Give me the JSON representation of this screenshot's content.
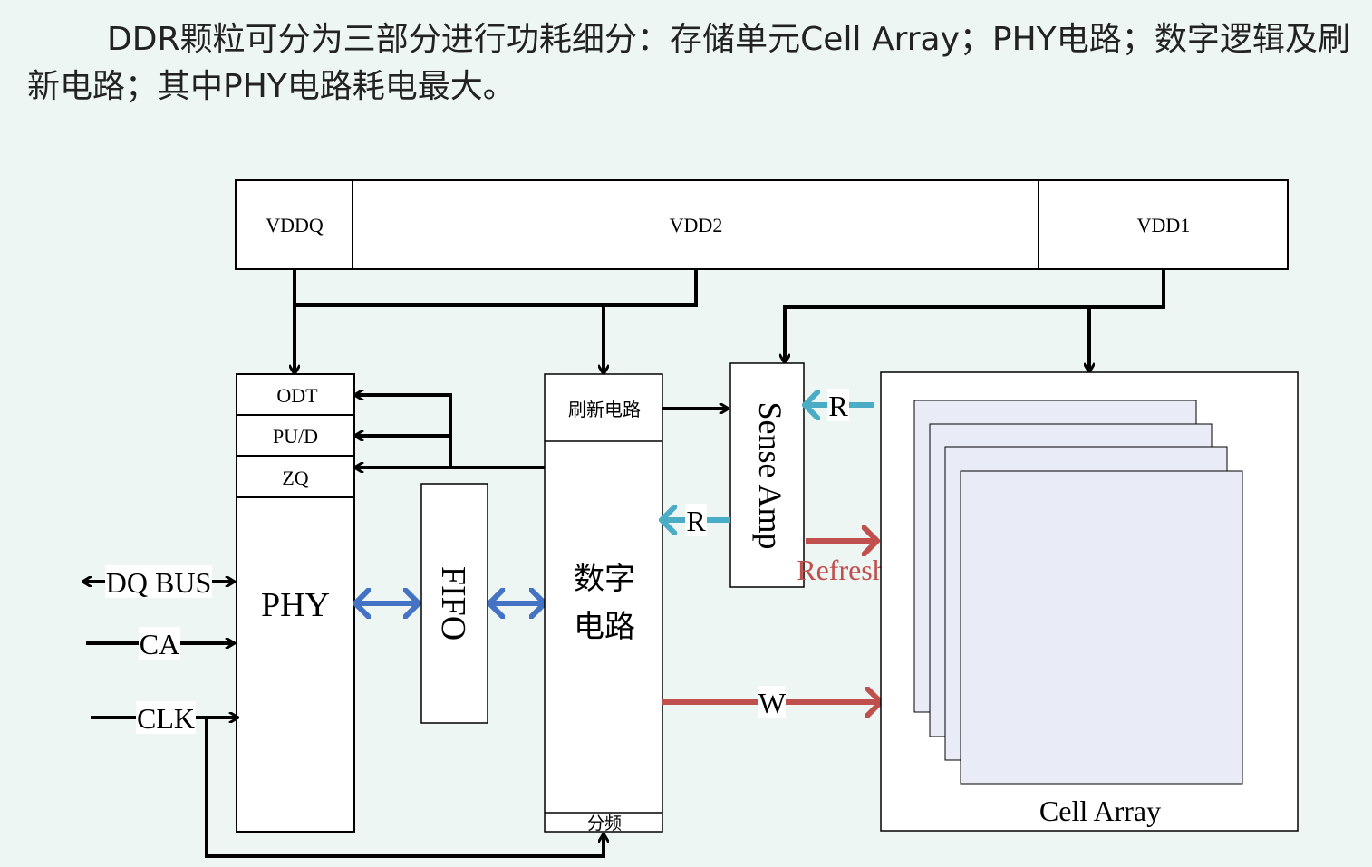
{
  "description": "DDR颗粒可分为三部分进行功耗细分：存储单元Cell Array；PHY电路；数字逻辑及刷新电路；其中PHY电路耗电最大。",
  "power_rails": {
    "vddq": "VDDQ",
    "vdd2": "VDD2",
    "vdd1": "VDD1"
  },
  "phy_block": {
    "odt": "ODT",
    "pud": "PU/D",
    "zq": "ZQ",
    "label": "PHY"
  },
  "signals": {
    "dq_bus": "DQ BUS",
    "ca": "CA",
    "clk": "CLK"
  },
  "fifo": "FIFO",
  "digital_block": {
    "refresh_circuit": "刷新电路",
    "label_line1": "数字",
    "label_line2": "电路",
    "divider": "分频"
  },
  "sense_amp": "Sense Amp",
  "arrow_labels": {
    "read_in": "R",
    "read_out": "R",
    "refresh": "Refresh",
    "write": "W"
  },
  "cell_array": "Cell Array",
  "colors": {
    "background": "#eef6f4",
    "line": "#000000",
    "bidir_arrow": "#4472c4",
    "read_arrow": "#4bacc6",
    "write_arrow": "#c0504d",
    "cell_layer_fill": "#e9ecf7"
  }
}
